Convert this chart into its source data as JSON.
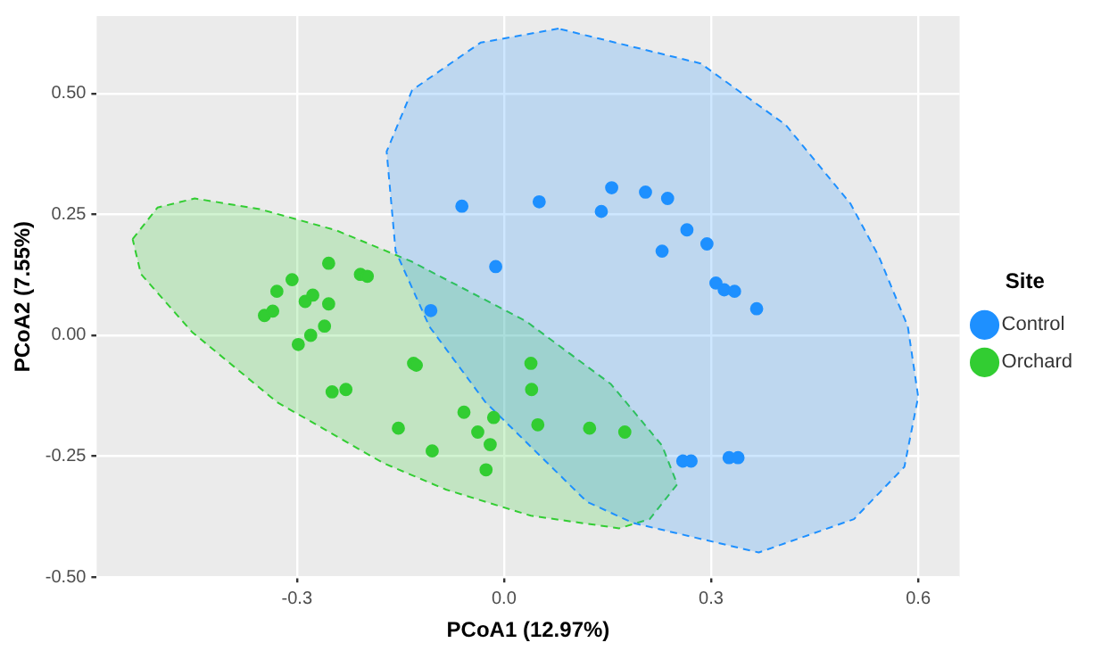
{
  "chart_data": {
    "type": "scatter",
    "xlabel": "PCoA1 (12.97%)",
    "ylabel": "PCoA2 (7.55%)",
    "legend_title": "Site",
    "legend": "right",
    "grid": true,
    "marker": "circle",
    "xlim": [
      -0.59,
      0.66
    ],
    "ylim": [
      -0.5,
      0.66
    ],
    "xticks": [
      -0.3,
      {
        "value": 0,
        "label": "0.0"
      },
      0.3,
      0.6
    ],
    "yticks": [
      {
        "value": -0.5,
        "label": "-0.50"
      },
      -0.25,
      {
        "value": 0,
        "label": "0.00"
      },
      0.25,
      {
        "value": 0.5,
        "label": "0.50"
      }
    ],
    "series": [
      {
        "type": "area",
        "marker": "none",
        "line_style": "dashed",
        "color": "#1e90ff",
        "x": [
          0.079,
          -0.034,
          -0.133,
          -0.17,
          -0.157,
          -0.108,
          -0.027,
          0.12,
          0.187,
          0.369,
          0.507,
          0.58,
          0.6,
          0.585,
          0.543,
          0.502,
          0.408,
          0.285,
          0.079
        ],
        "values": [
          0.634,
          0.605,
          0.507,
          0.38,
          0.174,
          0.018,
          -0.138,
          -0.344,
          -0.388,
          -0.449,
          -0.38,
          -0.272,
          -0.127,
          0.018,
          0.163,
          0.272,
          0.435,
          0.562,
          0.634
        ]
      },
      {
        "type": "area",
        "marker": "none",
        "line_style": "dashed",
        "color": "#32cd32",
        "x": [
          -0.538,
          -0.502,
          -0.448,
          -0.354,
          -0.243,
          -0.133,
          0.032,
          0.155,
          0.229,
          0.251,
          0.211,
          0.167,
          0.039,
          -0.084,
          -0.175,
          -0.329,
          -0.452,
          -0.526,
          -0.538
        ],
        "values": [
          0.199,
          0.264,
          0.283,
          0.261,
          0.217,
          0.152,
          0.029,
          -0.101,
          -0.228,
          -0.308,
          -0.38,
          -0.399,
          -0.373,
          -0.319,
          -0.264,
          -0.138,
          0.007,
          0.127,
          0.199
        ]
      },
      {
        "name": "Control",
        "color": "#1e90ff",
        "x": [
          -0.061,
          -0.012,
          -0.106,
          0.051,
          0.156,
          0.205,
          0.237,
          0.141,
          0.265,
          0.294,
          0.229,
          0.307,
          0.319,
          0.334,
          0.366,
          0.259,
          0.271,
          0.326,
          0.339
        ],
        "values": [
          0.267,
          0.142,
          0.051,
          0.276,
          0.305,
          0.296,
          0.283,
          0.256,
          0.218,
          0.189,
          0.174,
          0.108,
          0.094,
          0.091,
          0.055,
          -0.26,
          -0.26,
          -0.253,
          -0.253
        ]
      },
      {
        "name": "Orchard",
        "color": "#32cd32",
        "x": [
          -0.254,
          -0.307,
          -0.329,
          -0.288,
          -0.277,
          -0.254,
          -0.347,
          -0.335,
          -0.26,
          -0.28,
          -0.298,
          -0.208,
          -0.198,
          -0.131,
          -0.127,
          -0.249,
          -0.229,
          -0.153,
          -0.104,
          -0.058,
          -0.015,
          -0.038,
          -0.02,
          -0.026,
          0.039,
          0.04,
          0.049,
          0.124,
          0.175
        ],
        "values": [
          0.149,
          0.115,
          0.091,
          0.07,
          0.083,
          0.065,
          0.041,
          0.05,
          0.019,
          0,
          -0.019,
          0.126,
          0.122,
          -0.058,
          -0.062,
          -0.117,
          -0.112,
          -0.192,
          -0.239,
          -0.159,
          -0.17,
          -0.2,
          -0.226,
          -0.278,
          -0.058,
          -0.112,
          -0.185,
          -0.192,
          -0.2
        ]
      }
    ]
  }
}
